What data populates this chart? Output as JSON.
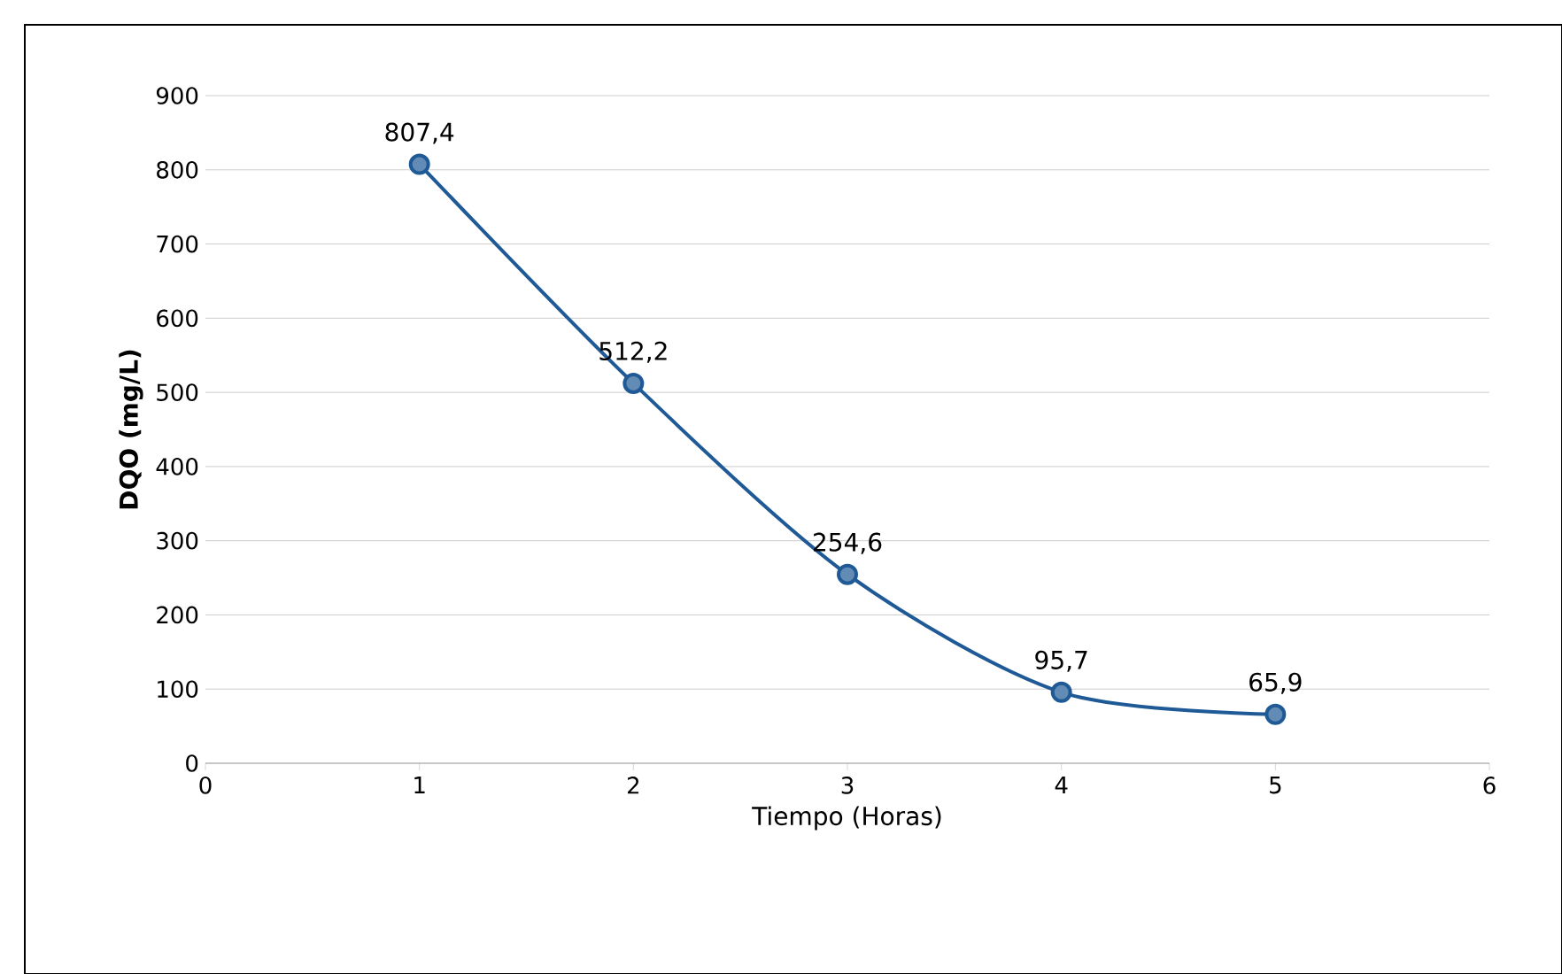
{
  "chart_data": {
    "type": "line",
    "xlabel": "Tiempo (Horas)",
    "ylabel": "DQO (mg/L)",
    "x": [
      1,
      2,
      3,
      4,
      5
    ],
    "series": [
      {
        "color": "#1f5a96",
        "values": [
          807.4,
          512.2,
          254.6,
          95.7,
          65.9
        ],
        "value_labels": [
          "807,4",
          "512,2",
          "254,6",
          "95,7",
          "65,9"
        ]
      }
    ],
    "xlim": [
      0,
      6
    ],
    "xticks": [
      0,
      1,
      2,
      3,
      4,
      5,
      6
    ],
    "ylim": [
      0,
      900
    ],
    "yticks": [
      0,
      100,
      200,
      300,
      400,
      500,
      600,
      700,
      800,
      900
    ],
    "grid": "y",
    "marker": "circle",
    "line_style": "solid"
  }
}
